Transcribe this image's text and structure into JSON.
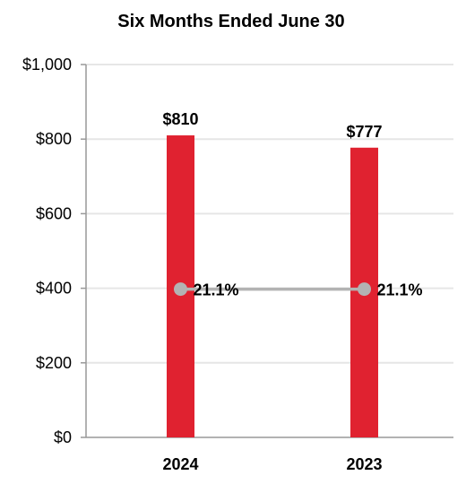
{
  "chart_data": {
    "type": "bar",
    "title": "Six Months Ended June 30",
    "categories": [
      "2024",
      "2023"
    ],
    "series": [
      {
        "type": "bar",
        "values": [
          810,
          777
        ],
        "value_labels": [
          "$810",
          "$777"
        ],
        "color": "#e02230"
      },
      {
        "type": "line",
        "values": [
          21.1,
          21.1
        ],
        "value_labels": [
          "21.1%",
          "21.1%"
        ],
        "color": "#b3b3b3",
        "axis": "none (plotted at mid-height of chart)"
      }
    ],
    "ylim": [
      0,
      1000
    ],
    "yticks": [
      0,
      200,
      400,
      600,
      800,
      1000
    ],
    "ytick_labels": [
      "$0",
      "$200",
      "$400",
      "$600",
      "$800",
      "$1,000"
    ],
    "grid": true,
    "legend": "none"
  }
}
